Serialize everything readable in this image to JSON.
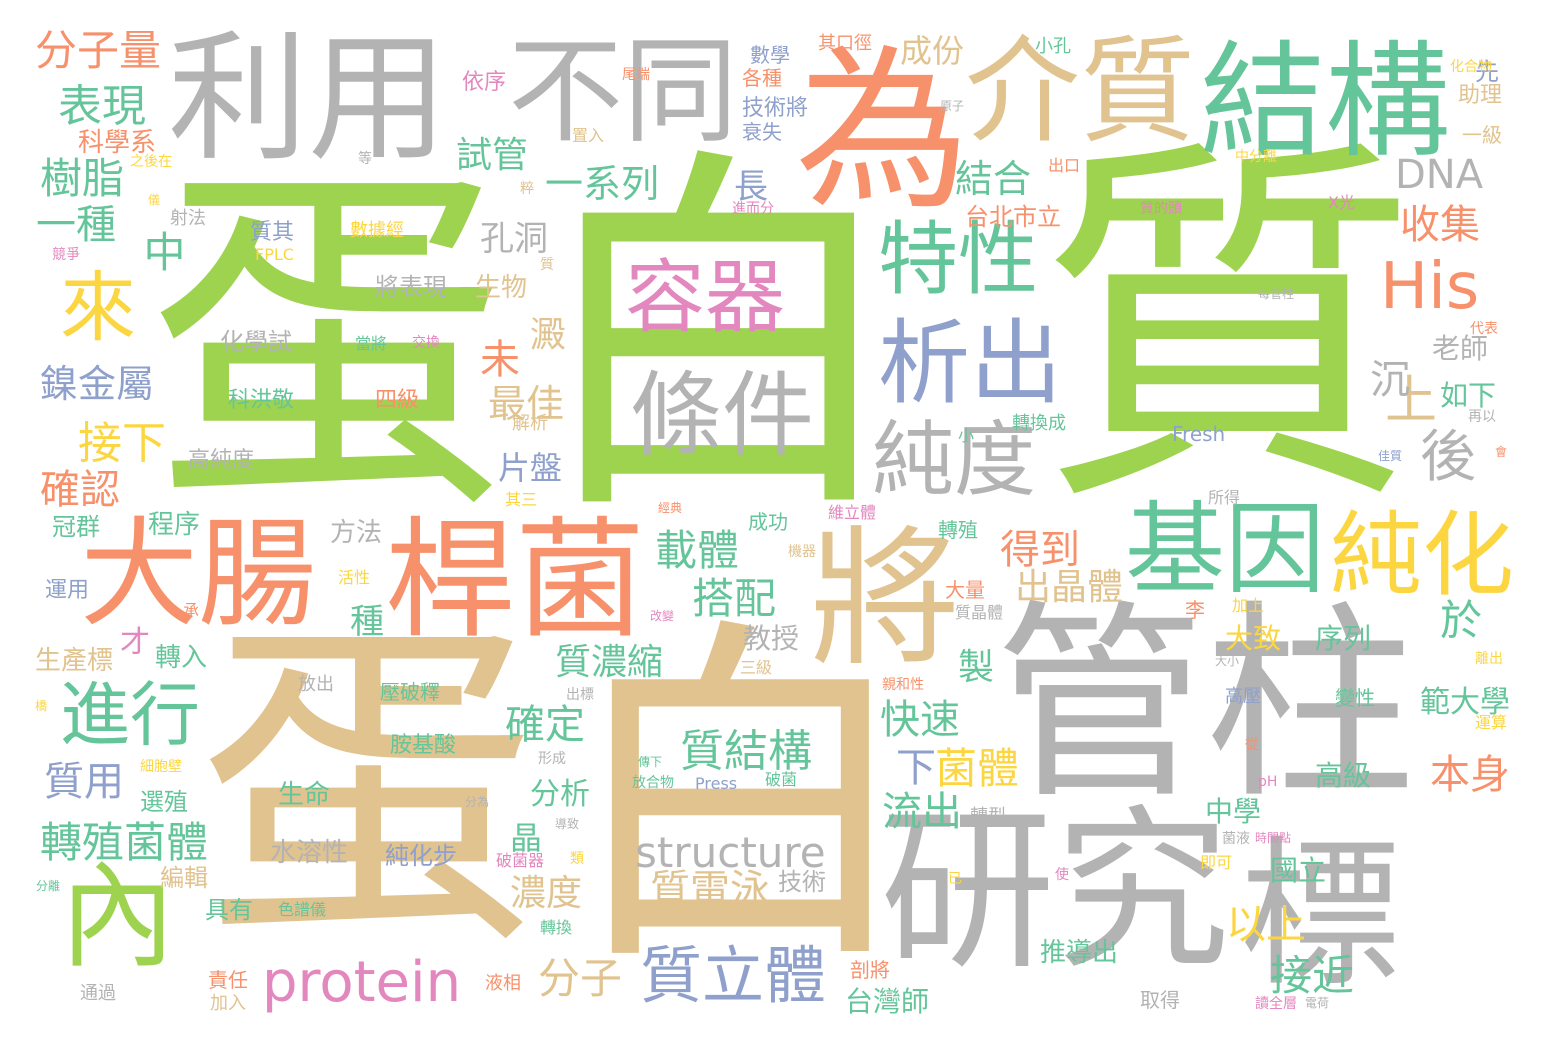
{
  "palette": {
    "green": "#9ed34f",
    "tan": "#e1c38f",
    "gray": "#b3b3b3",
    "coral": "#f7916b",
    "teal": "#65c59a",
    "blue": "#8ea0cb",
    "pink": "#e387bf",
    "yellow": "#fcd641"
  },
  "words": [
    {
      "text": "蛋",
      "color": "green"
    },
    {
      "text": "白",
      "color": "green"
    },
    {
      "text": "質",
      "color": "green"
    },
    {
      "text": "蛋",
      "color": "tan"
    },
    {
      "text": "白",
      "color": "tan"
    },
    {
      "text": "管柱",
      "color": "gray"
    },
    {
      "text": "研究",
      "color": "gray"
    },
    {
      "text": "標",
      "color": "gray"
    },
    {
      "text": "利用",
      "color": "gray"
    },
    {
      "text": "不同",
      "color": "gray"
    },
    {
      "text": "為",
      "color": "coral"
    },
    {
      "text": "介質",
      "color": "tan"
    },
    {
      "text": "結構",
      "color": "teal"
    },
    {
      "text": "大腸",
      "color": "coral"
    },
    {
      "text": "桿菌",
      "color": "coral"
    },
    {
      "text": "將",
      "color": "tan"
    },
    {
      "text": "基因",
      "color": "teal"
    },
    {
      "text": "純化",
      "color": "yellow"
    },
    {
      "text": "容器",
      "color": "pink"
    },
    {
      "text": "條件",
      "color": "gray"
    },
    {
      "text": "特性",
      "color": "teal"
    },
    {
      "text": "析出",
      "color": "blue"
    },
    {
      "text": "純度",
      "color": "gray"
    },
    {
      "text": "內",
      "color": "green"
    },
    {
      "text": "進行",
      "color": "teal"
    },
    {
      "text": "來",
      "color": "yellow"
    },
    {
      "text": "His",
      "color": "coral"
    },
    {
      "text": "protein",
      "color": "pink"
    },
    {
      "text": "質立體",
      "color": "blue"
    },
    {
      "text": "DNA",
      "color": "gray"
    },
    {
      "text": "structure",
      "color": "gray"
    },
    {
      "text": "上",
      "color": "tan"
    },
    {
      "text": "後",
      "color": "gray"
    },
    {
      "text": "分子量",
      "color": "coral"
    },
    {
      "text": "表現",
      "color": "teal"
    },
    {
      "text": "樹脂",
      "color": "teal"
    },
    {
      "text": "一種",
      "color": "teal"
    },
    {
      "text": "中",
      "color": "teal"
    },
    {
      "text": "鎳金屬",
      "color": "blue"
    },
    {
      "text": "接下",
      "color": "yellow"
    },
    {
      "text": "確認",
      "color": "coral"
    },
    {
      "text": "質用",
      "color": "blue"
    },
    {
      "text": "轉殖菌體",
      "color": "teal"
    },
    {
      "text": "試管",
      "color": "teal"
    },
    {
      "text": "一系列",
      "color": "teal"
    },
    {
      "text": "成份",
      "color": "tan"
    },
    {
      "text": "結合",
      "color": "teal"
    },
    {
      "text": "收集",
      "color": "coral"
    },
    {
      "text": "孔洞",
      "color": "gray"
    },
    {
      "text": "長",
      "color": "blue"
    },
    {
      "text": "未",
      "color": "coral"
    },
    {
      "text": "最佳",
      "color": "tan"
    },
    {
      "text": "澱",
      "color": "tan"
    },
    {
      "text": "得到",
      "color": "coral"
    },
    {
      "text": "載體",
      "color": "teal"
    },
    {
      "text": "搭配",
      "color": "teal"
    },
    {
      "text": "於",
      "color": "teal"
    },
    {
      "text": "出晶體",
      "color": "tan"
    },
    {
      "text": "質濃縮",
      "color": "teal"
    },
    {
      "text": "確定",
      "color": "teal"
    },
    {
      "text": "快速",
      "color": "teal"
    },
    {
      "text": "下",
      "color": "blue"
    },
    {
      "text": "菌體",
      "color": "yellow"
    },
    {
      "text": "質結構",
      "color": "teal"
    },
    {
      "text": "流出",
      "color": "teal"
    },
    {
      "text": "本身",
      "color": "coral"
    },
    {
      "text": "質電泳",
      "color": "tan"
    },
    {
      "text": "分子",
      "color": "tan"
    },
    {
      "text": "以上",
      "color": "yellow"
    },
    {
      "text": "接近",
      "color": "teal"
    },
    {
      "text": "濃度",
      "color": "tan"
    },
    {
      "text": "沉",
      "color": "gray"
    },
    {
      "text": "片盤",
      "color": "blue"
    },
    {
      "text": "分析",
      "color": "teal"
    },
    {
      "text": "晶",
      "color": "teal"
    },
    {
      "text": "製",
      "color": "teal"
    },
    {
      "text": "種",
      "color": "teal"
    },
    {
      "text": "才",
      "color": "pink"
    },
    {
      "text": "教授",
      "color": "gray"
    },
    {
      "text": "老師",
      "color": "gray"
    },
    {
      "text": "如下",
      "color": "teal"
    },
    {
      "text": "範大學",
      "color": "teal"
    },
    {
      "text": "高級",
      "color": "teal"
    },
    {
      "text": "中學",
      "color": "teal"
    },
    {
      "text": "國立",
      "color": "teal"
    },
    {
      "text": "序列",
      "color": "teal"
    },
    {
      "text": "大致",
      "color": "yellow"
    },
    {
      "text": "台北市立",
      "color": "coral"
    },
    {
      "text": "台灣師",
      "color": "teal"
    },
    {
      "text": "推導出",
      "color": "teal"
    },
    {
      "text": "化學試",
      "color": "gray"
    },
    {
      "text": "將表現",
      "color": "gray"
    },
    {
      "text": "生物",
      "color": "tan"
    },
    {
      "text": "高純度",
      "color": "gray"
    },
    {
      "text": "程序",
      "color": "teal"
    },
    {
      "text": "冠群",
      "color": "teal"
    },
    {
      "text": "方法",
      "color": "gray"
    },
    {
      "text": "轉入",
      "color": "teal"
    },
    {
      "text": "生產標",
      "color": "tan"
    },
    {
      "text": "選殖",
      "color": "teal"
    },
    {
      "text": "生命",
      "color": "teal"
    },
    {
      "text": "水溶性",
      "color": "gray"
    },
    {
      "text": "純化步",
      "color": "blue"
    },
    {
      "text": "技術",
      "color": "gray"
    },
    {
      "text": "編輯",
      "color": "tan"
    },
    {
      "text": "具有",
      "color": "teal"
    },
    {
      "text": "責任",
      "color": "coral"
    },
    {
      "text": "加入",
      "color": "tan"
    },
    {
      "text": "運用",
      "color": "blue"
    },
    {
      "text": "科學系",
      "color": "coral"
    },
    {
      "text": "依序",
      "color": "pink"
    },
    {
      "text": "數學",
      "color": "blue"
    },
    {
      "text": "各種",
      "color": "coral"
    },
    {
      "text": "技術將",
      "color": "blue"
    },
    {
      "text": "衰失",
      "color": "blue"
    },
    {
      "text": "其口徑",
      "color": "coral"
    },
    {
      "text": "小孔",
      "color": "teal"
    },
    {
      "text": "先",
      "color": "blue"
    },
    {
      "text": "化合物",
      "color": "yellow"
    },
    {
      "text": "助理",
      "color": "tan"
    },
    {
      "text": "一級",
      "color": "tan"
    },
    {
      "text": "出口",
      "color": "coral"
    },
    {
      "text": "X光",
      "color": "pink"
    },
    {
      "text": "科洪敬",
      "color": "teal"
    },
    {
      "text": "四級",
      "color": "coral"
    },
    {
      "text": "轉換成",
      "color": "teal"
    },
    {
      "text": "Fresh",
      "color": "blue"
    },
    {
      "text": "FPLC",
      "color": "yellow"
    },
    {
      "text": "質其",
      "color": "blue"
    },
    {
      "text": "數據經",
      "color": "yellow"
    },
    {
      "text": "射法",
      "color": "gray"
    },
    {
      "text": "成功",
      "color": "teal"
    },
    {
      "text": "維立體",
      "color": "pink"
    },
    {
      "text": "轉殖",
      "color": "teal"
    },
    {
      "text": "大量",
      "color": "coral"
    },
    {
      "text": "質晶體",
      "color": "gray"
    },
    {
      "text": "李",
      "color": "coral"
    },
    {
      "text": "加上",
      "color": "yellow"
    },
    {
      "text": "高壓",
      "color": "blue"
    },
    {
      "text": "變性",
      "color": "teal"
    },
    {
      "text": "運算",
      "color": "yellow"
    },
    {
      "text": "壓破釋",
      "color": "teal"
    },
    {
      "text": "胺基酸",
      "color": "teal"
    },
    {
      "text": "放出",
      "color": "gray"
    },
    {
      "text": "液相",
      "color": "coral"
    },
    {
      "text": "剖將",
      "color": "coral"
    },
    {
      "text": "取得",
      "color": "gray"
    },
    {
      "text": "所得",
      "color": "gray"
    },
    {
      "text": "即可",
      "color": "yellow"
    },
    {
      "text": "色譜儀",
      "color": "teal"
    },
    {
      "text": "通過",
      "color": "gray"
    },
    {
      "text": "破菌器",
      "color": "pink"
    },
    {
      "text": "轉換",
      "color": "teal"
    },
    {
      "text": "活性",
      "color": "yellow"
    },
    {
      "text": "承",
      "color": "coral"
    },
    {
      "text": "三級",
      "color": "tan"
    },
    {
      "text": "Press",
      "color": "blue"
    },
    {
      "text": "破菌",
      "color": "teal"
    },
    {
      "text": "解析",
      "color": "tan"
    },
    {
      "text": "其三",
      "color": "yellow"
    },
    {
      "text": "轉型",
      "color": "gray"
    },
    {
      "text": "pH",
      "color": "pink"
    },
    {
      "text": "從",
      "color": "coral"
    },
    {
      "text": "代表",
      "color": "coral"
    },
    {
      "text": "再以",
      "color": "gray"
    },
    {
      "text": "會",
      "color": "coral"
    },
    {
      "text": "使",
      "color": "pink"
    },
    {
      "text": "已",
      "color": "yellow"
    },
    {
      "text": "細胞壁",
      "color": "yellow"
    },
    {
      "text": "形成",
      "color": "gray"
    },
    {
      "text": "分為",
      "color": "gray"
    },
    {
      "text": "當將",
      "color": "teal"
    },
    {
      "text": "交換",
      "color": "pink"
    },
    {
      "text": "小",
      "color": "teal"
    },
    {
      "text": "機器",
      "color": "tan"
    },
    {
      "text": "經典",
      "color": "coral"
    },
    {
      "text": "改變",
      "color": "pink"
    },
    {
      "text": "之後在",
      "color": "yellow"
    },
    {
      "text": "尾端",
      "color": "coral"
    },
    {
      "text": "置入",
      "color": "tan"
    },
    {
      "text": "中分離",
      "color": "yellow"
    },
    {
      "text": "每管柱",
      "color": "gray"
    },
    {
      "text": "進而分",
      "color": "pink"
    },
    {
      "text": "質的頭",
      "color": "pink"
    },
    {
      "text": "競爭",
      "color": "pink"
    },
    {
      "text": "佳質",
      "color": "blue"
    },
    {
      "text": "離出",
      "color": "yellow"
    },
    {
      "text": "大小",
      "color": "gray"
    },
    {
      "text": "親和性",
      "color": "coral"
    },
    {
      "text": "時間點",
      "color": "pink"
    },
    {
      "text": "菌液",
      "color": "gray"
    },
    {
      "text": "導致",
      "color": "gray"
    },
    {
      "text": "分離",
      "color": "teal"
    },
    {
      "text": "橋",
      "color": "yellow"
    },
    {
      "text": "讀全層",
      "color": "pink"
    },
    {
      "text": "電荷",
      "color": "gray"
    },
    {
      "text": "傳下",
      "color": "teal"
    },
    {
      "text": "放合物",
      "color": "teal"
    },
    {
      "text": "原子",
      "color": "gray"
    },
    {
      "text": "粹",
      "color": "tan"
    },
    {
      "text": "質",
      "color": "tan"
    },
    {
      "text": "等",
      "color": "gray"
    },
    {
      "text": "出標",
      "color": "gray"
    },
    {
      "text": "類",
      "color": "yellow"
    },
    {
      "text": "儀",
      "color": "yellow"
    }
  ]
}
